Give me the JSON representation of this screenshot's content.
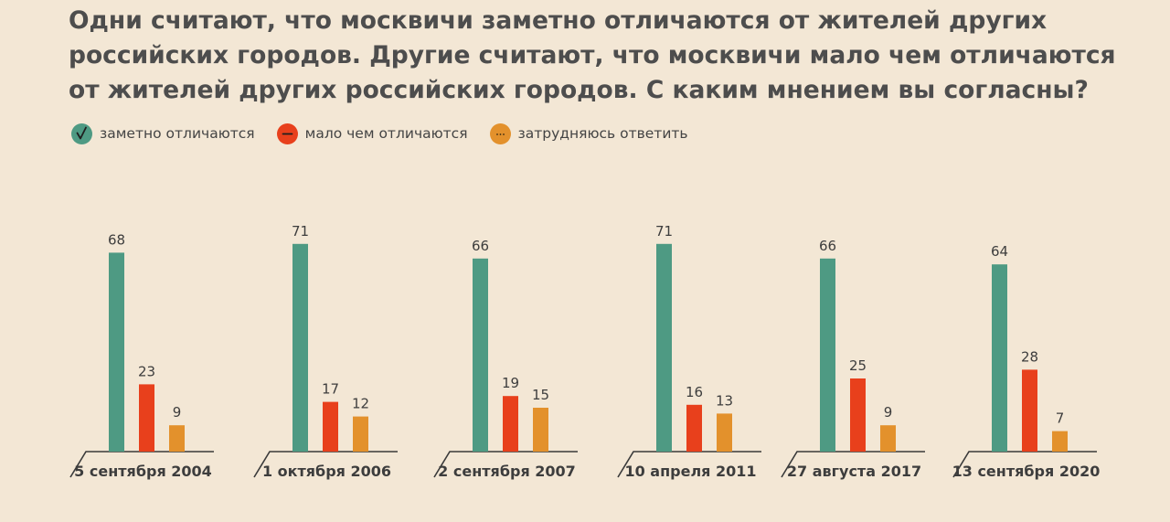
{
  "title": "Одни считают, что москвичи заметно отличаются от жителей других российских городов. Другие считают, что москвичи мало чем отличаются от жителей других российских городов. С каким мнением вы согласны?",
  "colors": {
    "green": "#4e9a83",
    "red": "#e8401c",
    "orange": "#e3912c",
    "axis": "#3a3a3a",
    "text": "#3d3d3d"
  },
  "legend": [
    {
      "label": "заметно отличаются",
      "icon": "check-icon"
    },
    {
      "label": "мало чем отличаются",
      "icon": "minus-icon"
    },
    {
      "label": "затрудняюсь ответить",
      "icon": "ellipsis-icon"
    }
  ],
  "chart_data": {
    "type": "bar",
    "categories": [
      "5 сентября 2004",
      "1 октября 2006",
      "2 сентября 2007",
      "10 апреля 2011",
      "27 августа 2017",
      "13 сентября 2020"
    ],
    "series": [
      {
        "name": "заметно отличаются",
        "values": [
          68,
          71,
          66,
          71,
          66,
          64
        ]
      },
      {
        "name": "мало чем отличаются",
        "values": [
          23,
          17,
          19,
          16,
          25,
          28
        ]
      },
      {
        "name": "затрудняюсь ответить",
        "values": [
          9,
          12,
          15,
          13,
          9,
          7
        ]
      }
    ],
    "ylim": [
      0,
      71
    ],
    "grid": false,
    "legend_position": "top-left",
    "data_labels": true
  }
}
